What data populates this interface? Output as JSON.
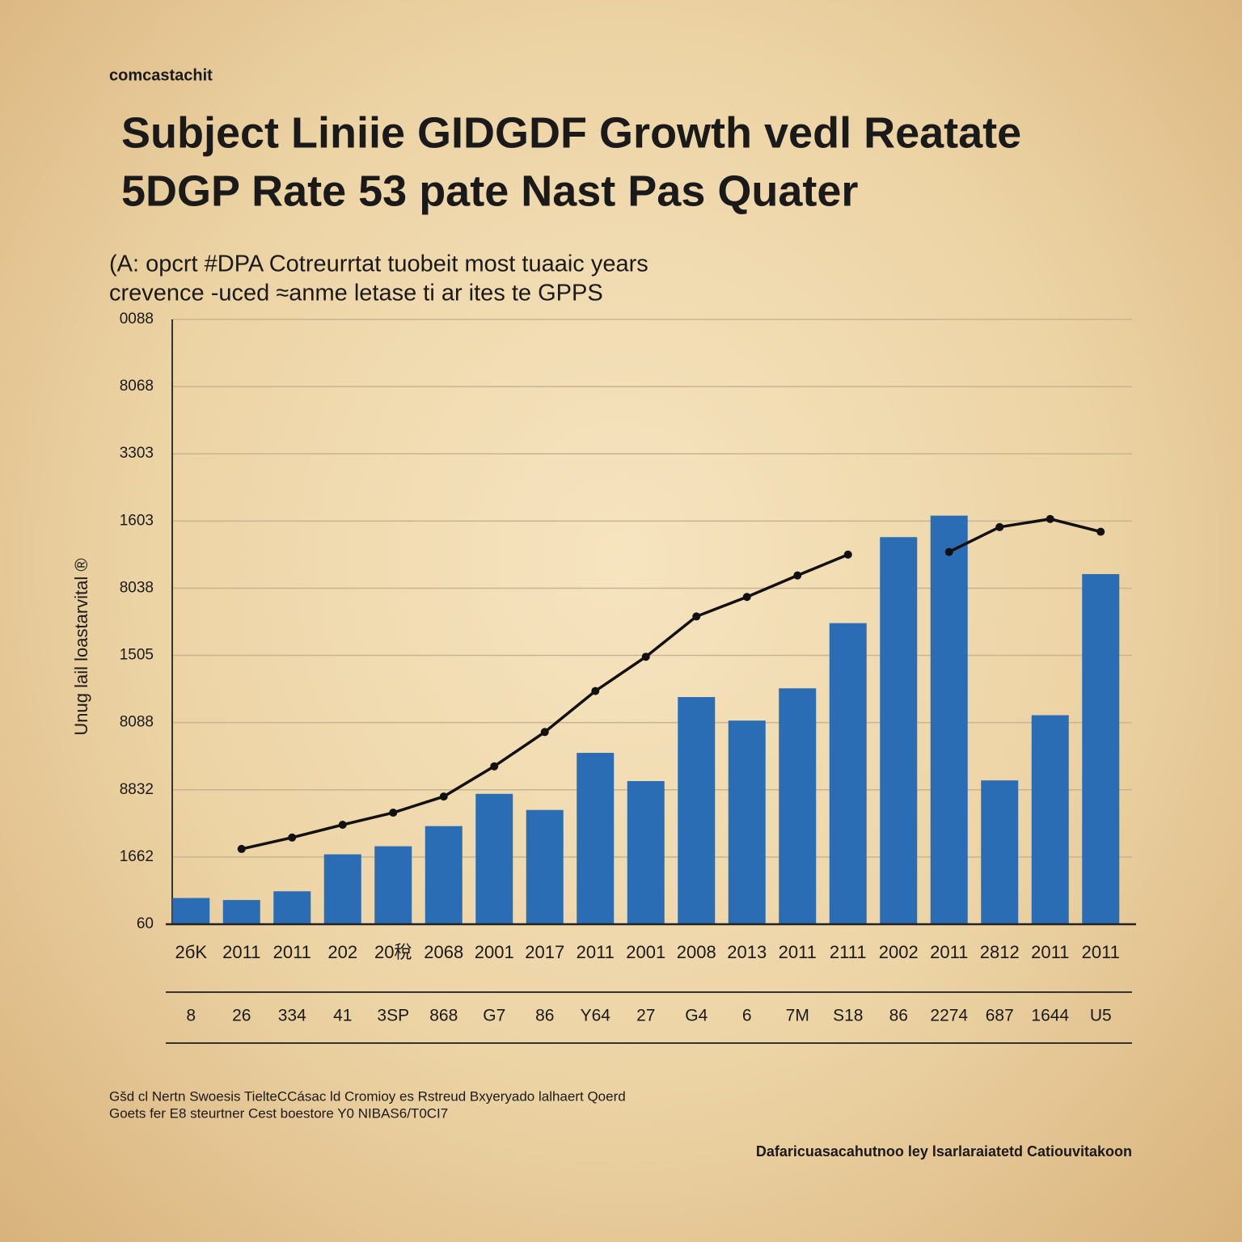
{
  "chart_data": {
    "type": "bar",
    "header": "comcastachit",
    "title": [
      "Subject Liniie GIDGDF Growth vedl Reatate",
      "5DGP Rate 53 pate  Nast Pas Quater"
    ],
    "subtitle": [
      "(A: opcrt #DPA Cotreurrtat  tuobeit most tuaaic years",
      "crevence -uced ≈anme  letase ti ar ites te GPPS"
    ],
    "ylabel": "Unug lail loastarvital ®",
    "categories": [
      "2бK",
      "2011",
      "2011",
      "202",
      "20稅",
      "2068",
      "2001",
      "2017",
      "2011",
      "2001",
      "2008",
      "2013",
      "2011",
      "2111",
      "2002",
      "2011",
      "2812",
      "2011",
      "2011"
    ],
    "values": [
      0.39,
      0.36,
      0.49,
      1.04,
      1.16,
      1.46,
      1.94,
      1.7,
      2.55,
      2.13,
      3.38,
      3.03,
      3.51,
      4.48,
      5.76,
      6.08,
      2.14,
      3.11,
      5.21
    ],
    "color": "#2a6db5",
    "line": {
      "color": "#111111",
      "values": [
        null,
        1.12,
        1.29,
        1.48,
        1.66,
        1.9,
        2.35,
        2.86,
        3.47,
        3.98,
        4.58,
        4.87,
        5.19,
        5.5,
        null,
        5.54,
        5.91,
        6.03,
        5.84
      ]
    },
    "row_labels": [
      "8",
      "26",
      "334",
      "41",
      "3SP",
      "868",
      "G7",
      "86",
      "Y64",
      "27",
      "G4",
      "6",
      "7M",
      "S18",
      "86",
      "2274",
      "687",
      "1644",
      "U5"
    ],
    "ylim": [
      0,
      9
    ],
    "yticks": [
      {
        "value": 0,
        "label": "60"
      },
      {
        "value": 1,
        "label": "1662"
      },
      {
        "value": 2,
        "label": "8832"
      },
      {
        "value": 3,
        "label": "8088"
      },
      {
        "value": 4,
        "label": "1505"
      },
      {
        "value": 5,
        "label": "8038"
      },
      {
        "value": 6,
        "label": "1603"
      },
      {
        "value": 7,
        "label": "3303"
      },
      {
        "value": 8,
        "label": "8068"
      },
      {
        "value": 9,
        "label": "0088"
      }
    ],
    "grid": true,
    "notes": [
      "Gšd cl Nertn Swoesis TielteCCásac ld Cromioy es Rstreud Bxyeryado lalhaert Qoerd",
      "Goets fer E8 steurtner Cest boestore Y0 NIBAS6/T0CI7"
    ],
    "source": "Dafaricuasacahutnoo ley lsarlaraiatetd Catiouvitakoon"
  }
}
